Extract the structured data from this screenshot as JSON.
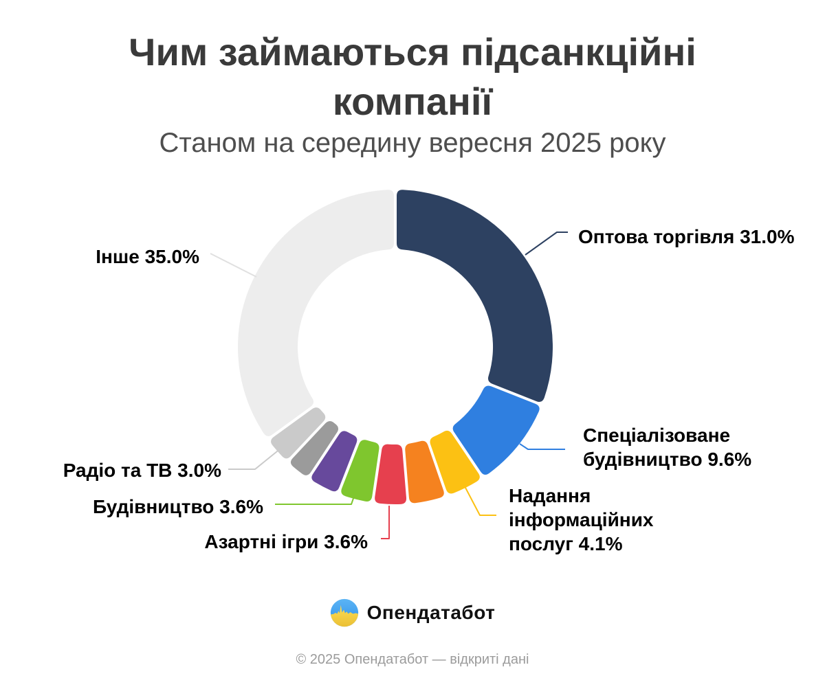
{
  "title": "Чим займаються підсанкційні компанії",
  "subtitle": "Станом на середину вересня 2025 року",
  "chart_data": {
    "type": "pie",
    "subtype": "donut",
    "title": "Чим займаються підсанкційні компанії",
    "subtitle": "Станом на середину вересня 2025 року",
    "unit": "%",
    "legend_position": "none",
    "start_angle_deg": 0,
    "direction": "clockwise",
    "slices": [
      {
        "label": "Оптова торгівля",
        "value": 31.0,
        "color": "#2d4161"
      },
      {
        "label": "Спеціалізоване будівництво",
        "value": 9.6,
        "color": "#2f7fe0"
      },
      {
        "label": "Надання інформаційних послуг",
        "value": 4.1,
        "color": "#fcc113"
      },
      {
        "label": "",
        "value": 4.0,
        "color": "#f5821f"
      },
      {
        "label": "Азартні ігри",
        "value": 3.6,
        "color": "#e6404e"
      },
      {
        "label": "Будівництво",
        "value": 3.6,
        "color": "#7fc62e"
      },
      {
        "label": "",
        "value": 3.4,
        "color": "#67499c"
      },
      {
        "label": "",
        "value": 2.7,
        "color": "#9b9b9b"
      },
      {
        "label": "Радіо та ТВ",
        "value": 3.0,
        "color": "#cacaca"
      },
      {
        "label": "Інше",
        "value": 35.0,
        "color": "#ededed"
      }
    ],
    "callouts": [
      {
        "slice": 0,
        "text": "Оптова торгівля 31.0%"
      },
      {
        "slice": 1,
        "text": "Спеціалізоване\nбудівництво 9.6%"
      },
      {
        "slice": 2,
        "text": "Надання\nінформаційних\nпослуг 4.1%"
      },
      {
        "slice": 4,
        "text": "Азартні ігри 3.6%"
      },
      {
        "slice": 5,
        "text": "Будівництво 3.6%"
      },
      {
        "slice": 8,
        "text": "Радіо та ТВ 3.0%"
      },
      {
        "slice": 9,
        "text": "Інше 35.0%"
      }
    ]
  },
  "logo": {
    "name": "Опендатабот",
    "icon": "opendatabot-flag-waveform-icon",
    "icon_colors": {
      "blue": "#45a8f2",
      "yellow": "#ffd84f"
    }
  },
  "footer": {
    "text": "© 2025 Опендатабот — відкриті дані"
  }
}
